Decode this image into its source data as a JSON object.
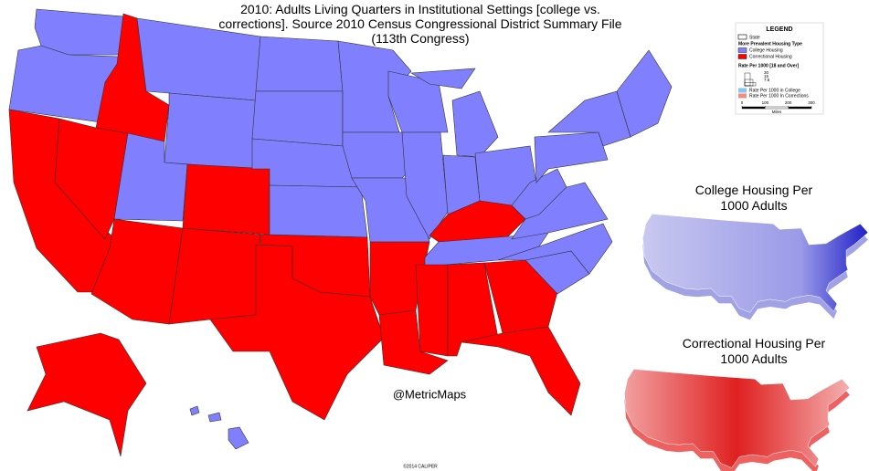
{
  "title": "2010: Adults Living Quarters in Institutional Settings [college vs. corrections].  Source 2010 Census Congressional District Summary File (113th Congress)",
  "legend": {
    "heading": "LEGEND",
    "state": "State",
    "housing_heading": "More Prevalent Housing Type",
    "housing_types": [
      {
        "label": "College Housing",
        "color": "#8080ff"
      },
      {
        "label": "Correctional Housing",
        "color": "#ff0000"
      }
    ],
    "rate_heading": "Rate Per 1000 [18 and Over]",
    "rate_sizes": [
      30,
      15,
      7.5
    ],
    "rate_series": [
      {
        "label": "Rate Per 1000 in College",
        "color": "#87c4ee"
      },
      {
        "label": "Rate Per 1000 In Corrections",
        "color": "#f28b82"
      }
    ],
    "scale": {
      "ticks": [
        0,
        100,
        200,
        300
      ],
      "unit": "Miles"
    }
  },
  "insets": [
    {
      "title": "College Housing Per 1000 Adults",
      "color": "#8a8ae0"
    },
    {
      "title": "Correctional Housing Per 1000 Adults",
      "color": "#e83a3a"
    }
  ],
  "watermark": "@MetricMaps",
  "credit": "©2014 CALIPER"
}
